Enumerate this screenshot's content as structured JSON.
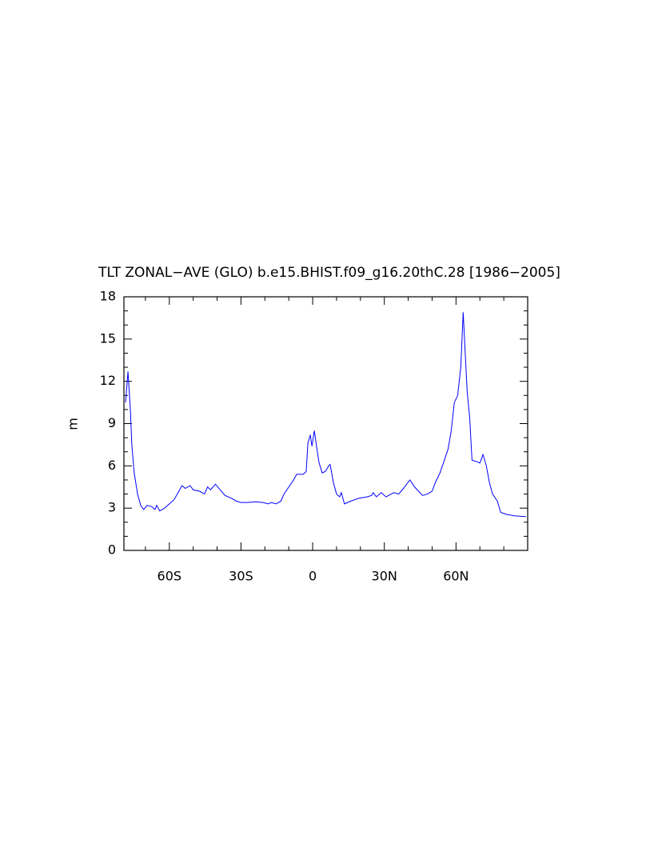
{
  "chart_data": {
    "type": "line",
    "title": "TLT ZONAL−AVE (GLO) b.e15.BHIST.f09_g16.20thC.28 [1986−2005]",
    "y_label": "m",
    "x": [
      -78.3,
      -77.3,
      -76.3,
      -75.7,
      -74.7,
      -73.3,
      -72,
      -70.7,
      -69.3,
      -67.3,
      -66,
      -65.3,
      -64,
      -62,
      -60,
      -58,
      -56,
      -54.7,
      -53.3,
      -51.3,
      -50,
      -47.3,
      -45.3,
      -44,
      -42.7,
      -40.7,
      -38.7,
      -36.7,
      -34,
      -32,
      -30,
      -27.3,
      -24,
      -20.7,
      -18.7,
      -17.3,
      -15.3,
      -13.3,
      -12,
      -10,
      -8,
      -6.7,
      -4,
      -2.7,
      -2,
      -1,
      -0.3,
      0.7,
      1.7,
      2.7,
      4,
      5.3,
      6.7,
      7.3,
      8.7,
      10,
      11.3,
      12,
      13.3,
      16,
      19.3,
      22.7,
      24.7,
      25.3,
      26.7,
      28.7,
      30.7,
      34,
      36,
      38,
      40.7,
      42.7,
      46,
      48,
      50,
      51.3,
      53.3,
      55.3,
      56.7,
      58,
      59.3,
      60.7,
      62,
      63,
      64,
      64.7,
      65.7,
      66.7,
      68.7,
      70,
      71.3,
      72.7,
      74,
      75.3,
      77.3,
      78.7,
      81.3,
      84.7,
      89.3
    ],
    "series": [
      {
        "name": "TLT",
        "color": "#0000ff",
        "values": [
          10.5,
          12.7,
          10,
          7.5,
          5.5,
          4,
          3.2,
          2.9,
          3.2,
          3.1,
          2.9,
          3.2,
          2.8,
          3.0,
          3.3,
          3.6,
          4.2,
          4.6,
          4.4,
          4.6,
          4.3,
          4.2,
          4.0,
          4.5,
          4.3,
          4.7,
          4.3,
          3.9,
          3.7,
          3.5,
          3.4,
          3.4,
          3.45,
          3.4,
          3.3,
          3.4,
          3.3,
          3.5,
          4.0,
          4.5,
          5.0,
          5.4,
          5.4,
          5.6,
          7.6,
          8.2,
          7.4,
          8.5,
          7.3,
          6.2,
          5.5,
          5.6,
          6.0,
          6.1,
          4.8,
          4.0,
          3.8,
          4.1,
          3.3,
          3.5,
          3.7,
          3.8,
          3.9,
          4.1,
          3.8,
          4.1,
          3.8,
          4.1,
          4.0,
          4.4,
          5.0,
          4.5,
          3.9,
          4.0,
          4.2,
          4.8,
          5.5,
          6.5,
          7.2,
          8.5,
          10.5,
          11.0,
          13.0,
          16.9,
          13.5,
          11.2,
          9.5,
          6.4,
          6.3,
          6.2,
          6.8,
          6.0,
          4.8,
          4.0,
          3.5,
          2.7,
          2.55,
          2.45,
          2.4
        ]
      }
    ],
    "xlim": [
      -79,
      90
    ],
    "ylim": [
      0,
      18
    ],
    "xticks": [
      {
        "value": -60,
        "label": "60S"
      },
      {
        "value": -30,
        "label": "30S"
      },
      0,
      {
        "value": 30,
        "label": "30N"
      },
      {
        "value": 60,
        "label": "60N"
      }
    ],
    "yticks": [
      0,
      3,
      6,
      9,
      12,
      15,
      18
    ],
    "xminorticks": [
      -70,
      -50,
      -40,
      -20,
      -10,
      10,
      20,
      40,
      50,
      70,
      80
    ],
    "yminorticks": [
      1,
      2,
      4,
      5,
      7,
      8,
      10,
      11,
      13,
      14,
      16,
      17
    ]
  }
}
